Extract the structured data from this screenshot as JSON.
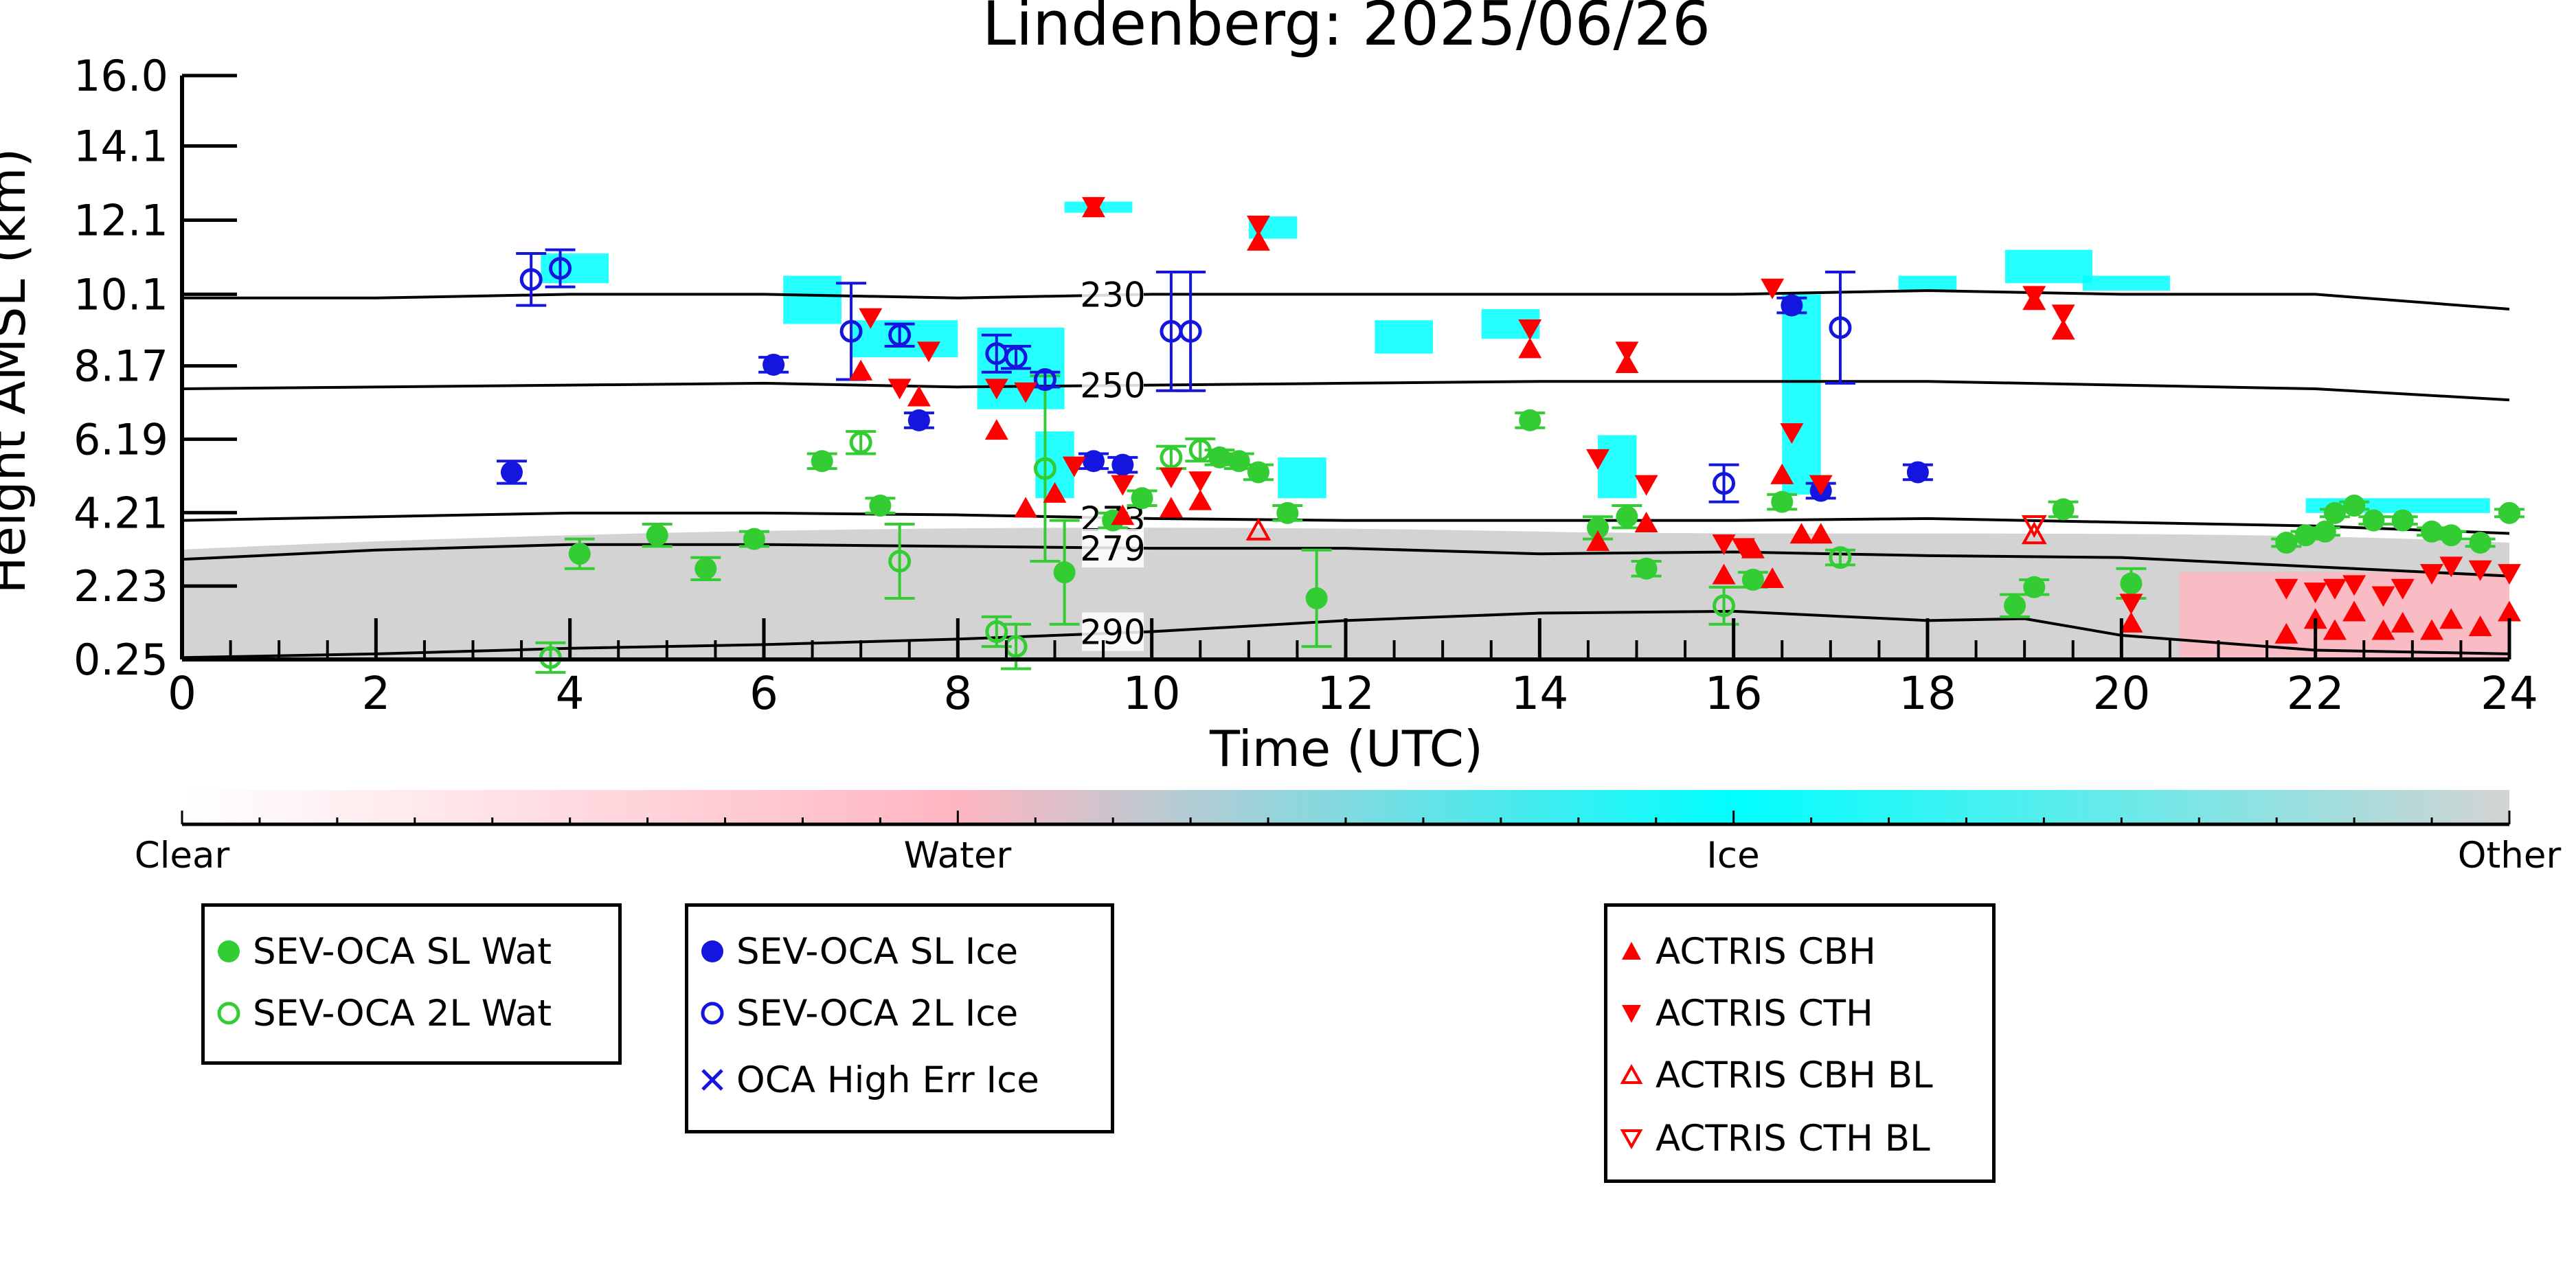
{
  "chart_data": {
    "type": "scatter",
    "title": "Lindenberg: 2025/06/26",
    "xlabel": "Time (UTC)",
    "ylabel": "Height AMSL (km)",
    "xlim": [
      0,
      24
    ],
    "x_ticks": [
      "0",
      "2",
      "4",
      "6",
      "8",
      "10",
      "12",
      "14",
      "16",
      "18",
      "20",
      "22",
      "24"
    ],
    "y_ticks": [
      "16.0",
      "14.1",
      "12.1",
      "10.1",
      "8.17",
      "6.19",
      "4.21",
      "2.23",
      "0.25"
    ],
    "grid": false,
    "colorbar": {
      "labels": [
        "Clear",
        "Water",
        "Ice",
        "Other"
      ],
      "colors": [
        "#ffffff",
        "#ffb6c1",
        "#00ffff",
        "#d3d3d3"
      ]
    },
    "isotherms": [
      {
        "label": "230",
        "x": [
          0,
          2,
          4,
          6,
          8,
          10,
          12,
          14,
          16,
          18,
          20,
          22,
          24
        ],
        "y": [
          10.0,
          10.0,
          10.1,
          10.1,
          10.0,
          10.1,
          10.1,
          10.1,
          10.1,
          10.2,
          10.1,
          10.1,
          9.7
        ]
      },
      {
        "label": "250",
        "x": [
          0,
          2,
          4,
          6,
          8,
          10,
          12,
          14,
          16,
          18,
          20,
          22,
          24
        ],
        "y": [
          7.55,
          7.6,
          7.65,
          7.7,
          7.6,
          7.65,
          7.7,
          7.75,
          7.75,
          7.75,
          7.65,
          7.55,
          7.25
        ]
      },
      {
        "label": "273",
        "x": [
          0,
          2,
          4,
          6,
          8,
          10,
          12,
          14,
          16,
          18,
          20,
          22,
          24
        ],
        "y": [
          4.0,
          4.1,
          4.2,
          4.2,
          4.15,
          4.05,
          4.0,
          4.0,
          4.0,
          4.05,
          3.95,
          3.85,
          3.65
        ]
      },
      {
        "label": "279",
        "x": [
          0,
          2,
          4,
          6,
          8,
          10,
          12,
          14,
          16,
          18,
          20,
          22,
          24
        ],
        "y": [
          2.95,
          3.2,
          3.35,
          3.35,
          3.3,
          3.25,
          3.25,
          3.1,
          3.15,
          3.05,
          3.0,
          2.75,
          2.5
        ]
      },
      {
        "label": "290",
        "x": [
          0,
          2,
          4,
          6,
          8,
          10,
          12,
          14,
          16,
          18,
          19,
          20,
          22,
          24
        ],
        "y": [
          0.3,
          0.4,
          0.55,
          0.65,
          0.8,
          1.0,
          1.3,
          1.5,
          1.55,
          1.3,
          1.35,
          0.9,
          0.5,
          0.4
        ]
      }
    ],
    "series": [
      {
        "name": "SEV-OCA SL Wat",
        "color": "#33cc33",
        "marker": "filled-circle",
        "points": [
          [
            4.1,
            3.1,
            0.4
          ],
          [
            4.9,
            3.6,
            0.3
          ],
          [
            5.4,
            2.7,
            0.3
          ],
          [
            5.9,
            3.5,
            0.2
          ],
          [
            6.6,
            5.6,
            0.2
          ],
          [
            7.2,
            4.4,
            0.2
          ],
          [
            9.1,
            2.6,
            1.4
          ],
          [
            9.6,
            4.0,
            0.2
          ],
          [
            9.9,
            4.6,
            0.2
          ],
          [
            10.7,
            5.7,
            0.2
          ],
          [
            10.9,
            5.6,
            0.2
          ],
          [
            11.1,
            5.3,
            0.2
          ],
          [
            11.4,
            4.2,
            0.2
          ],
          [
            11.7,
            1.9,
            1.3
          ],
          [
            13.9,
            6.7,
            0.2
          ],
          [
            14.6,
            3.8,
            0.3
          ],
          [
            14.9,
            4.1,
            0.3
          ],
          [
            15.1,
            2.7,
            0.2
          ],
          [
            16.2,
            2.4,
            0.2
          ],
          [
            16.5,
            4.5,
            0.2
          ],
          [
            18.9,
            1.7,
            0.3
          ],
          [
            19.1,
            2.2,
            0.2
          ],
          [
            19.4,
            4.3,
            0.2
          ],
          [
            20.1,
            2.3,
            0.4
          ],
          [
            21.7,
            3.4,
            0.1
          ],
          [
            21.9,
            3.6,
            0.1
          ],
          [
            22.1,
            3.7,
            0.1
          ],
          [
            22.2,
            4.2,
            0.1
          ],
          [
            22.4,
            4.4,
            0.1
          ],
          [
            22.6,
            4.0,
            0.1
          ],
          [
            22.9,
            4.0,
            0.1
          ],
          [
            23.2,
            3.7,
            0.1
          ],
          [
            23.4,
            3.6,
            0.1
          ],
          [
            23.7,
            3.4,
            0.1
          ],
          [
            24.0,
            4.2,
            0.1
          ]
        ]
      },
      {
        "name": "SEV-OCA 2L Wat",
        "color": "#33cc33",
        "marker": "open-circle",
        "points": [
          [
            3.8,
            0.3,
            0.4
          ],
          [
            7.0,
            6.1,
            0.3
          ],
          [
            7.4,
            2.9,
            1.0
          ],
          [
            8.4,
            1.0,
            0.4
          ],
          [
            8.6,
            0.6,
            0.6
          ],
          [
            8.9,
            5.4,
            2.5
          ],
          [
            10.2,
            5.7,
            0.3
          ],
          [
            10.5,
            5.9,
            0.3
          ],
          [
            15.9,
            1.7,
            0.5
          ],
          [
            17.1,
            3.0,
            0.2
          ]
        ]
      },
      {
        "name": "SEV-OCA SL Ice",
        "color": "#1515e0",
        "marker": "filled-circle",
        "points": [
          [
            3.4,
            5.3,
            0.3
          ],
          [
            6.1,
            8.2,
            0.2
          ],
          [
            7.6,
            6.7,
            0.2
          ],
          [
            9.4,
            5.6,
            0.2
          ],
          [
            9.7,
            5.5,
            0.2
          ],
          [
            16.6,
            9.8,
            0.2
          ],
          [
            16.9,
            4.8,
            0.2
          ],
          [
            17.9,
            5.3,
            0.2
          ]
        ]
      },
      {
        "name": "SEV-OCA 2L Ice",
        "color": "#1515e0",
        "marker": "open-circle",
        "points": [
          [
            3.6,
            10.5,
            0.7
          ],
          [
            3.9,
            10.8,
            0.5
          ],
          [
            6.9,
            9.1,
            1.3
          ],
          [
            7.4,
            9.0,
            0.3
          ],
          [
            8.4,
            8.5,
            0.5
          ],
          [
            8.6,
            8.4,
            0.3
          ],
          [
            8.9,
            7.8,
            0.2
          ],
          [
            10.2,
            9.1,
            1.6
          ],
          [
            10.4,
            9.1,
            1.6
          ],
          [
            15.9,
            5.0,
            0.5
          ],
          [
            17.1,
            9.2,
            1.5
          ]
        ]
      },
      {
        "name": "OCA High Err Ice",
        "color": "#1515e0",
        "marker": "x",
        "points": []
      },
      {
        "name": "ACTRIS CBH",
        "color": "#ff0000",
        "marker": "triangle-up",
        "points": [
          [
            7.0,
            8.0
          ],
          [
            7.6,
            7.3
          ],
          [
            8.4,
            6.4
          ],
          [
            8.7,
            4.3
          ],
          [
            9.0,
            4.7
          ],
          [
            9.4,
            12.4
          ],
          [
            9.7,
            4.1
          ],
          [
            10.2,
            4.3
          ],
          [
            10.5,
            4.5
          ],
          [
            11.1,
            11.5
          ],
          [
            13.9,
            8.6
          ],
          [
            14.9,
            8.2
          ],
          [
            14.6,
            3.4
          ],
          [
            15.1,
            3.9
          ],
          [
            15.9,
            2.5
          ],
          [
            16.2,
            3.2
          ],
          [
            16.4,
            2.4
          ],
          [
            16.5,
            5.2
          ],
          [
            16.7,
            3.6
          ],
          [
            16.9,
            3.6
          ],
          [
            19.1,
            9.9
          ],
          [
            19.4,
            9.1
          ],
          [
            20.1,
            1.2
          ],
          [
            21.7,
            0.9
          ],
          [
            22.0,
            1.3
          ],
          [
            22.2,
            1.0
          ],
          [
            22.4,
            1.5
          ],
          [
            22.7,
            1.0
          ],
          [
            22.9,
            1.2
          ],
          [
            23.2,
            1.0
          ],
          [
            23.4,
            1.3
          ],
          [
            23.7,
            1.1
          ],
          [
            24.0,
            1.5
          ]
        ]
      },
      {
        "name": "ACTRIS CTH",
        "color": "#ff0000",
        "marker": "triangle-down",
        "points": [
          [
            7.1,
            9.5
          ],
          [
            7.7,
            8.6
          ],
          [
            7.4,
            7.6
          ],
          [
            8.4,
            7.6
          ],
          [
            8.7,
            7.5
          ],
          [
            9.2,
            5.5
          ],
          [
            9.4,
            12.5
          ],
          [
            9.7,
            5.0
          ],
          [
            10.2,
            5.2
          ],
          [
            10.5,
            5.1
          ],
          [
            11.1,
            12.0
          ],
          [
            13.9,
            9.2
          ],
          [
            14.9,
            8.6
          ],
          [
            14.6,
            5.7
          ],
          [
            15.1,
            5.0
          ],
          [
            15.9,
            3.4
          ],
          [
            16.1,
            3.3
          ],
          [
            16.4,
            10.3
          ],
          [
            16.6,
            6.4
          ],
          [
            16.9,
            5.0
          ],
          [
            19.1,
            10.1
          ],
          [
            19.4,
            9.6
          ],
          [
            20.1,
            1.8
          ],
          [
            21.7,
            2.2
          ],
          [
            22.0,
            2.1
          ],
          [
            22.2,
            2.2
          ],
          [
            22.4,
            2.3
          ],
          [
            22.7,
            2.0
          ],
          [
            22.9,
            2.2
          ],
          [
            23.2,
            2.6
          ],
          [
            23.4,
            2.8
          ],
          [
            23.7,
            2.7
          ],
          [
            24.0,
            2.6
          ]
        ]
      },
      {
        "name": "ACTRIS CBH BL",
        "color": "#ff0000",
        "marker": "open-triangle-up",
        "points": [
          [
            11.1,
            3.7
          ],
          [
            19.1,
            3.6
          ]
        ]
      },
      {
        "name": "ACTRIS CTH BL",
        "color": "#ff0000",
        "marker": "open-triangle-down",
        "points": [
          [
            19.1,
            3.9
          ]
        ]
      }
    ]
  },
  "legends": [
    [
      "SEV-OCA SL Wat",
      "SEV-OCA 2L Wat"
    ],
    [
      "SEV-OCA SL Ice",
      "SEV-OCA 2L Ice",
      "OCA High Err Ice"
    ],
    [
      "ACTRIS CBH",
      "ACTRIS CTH",
      "ACTRIS CBH BL",
      "ACTRIS CTH BL"
    ]
  ]
}
